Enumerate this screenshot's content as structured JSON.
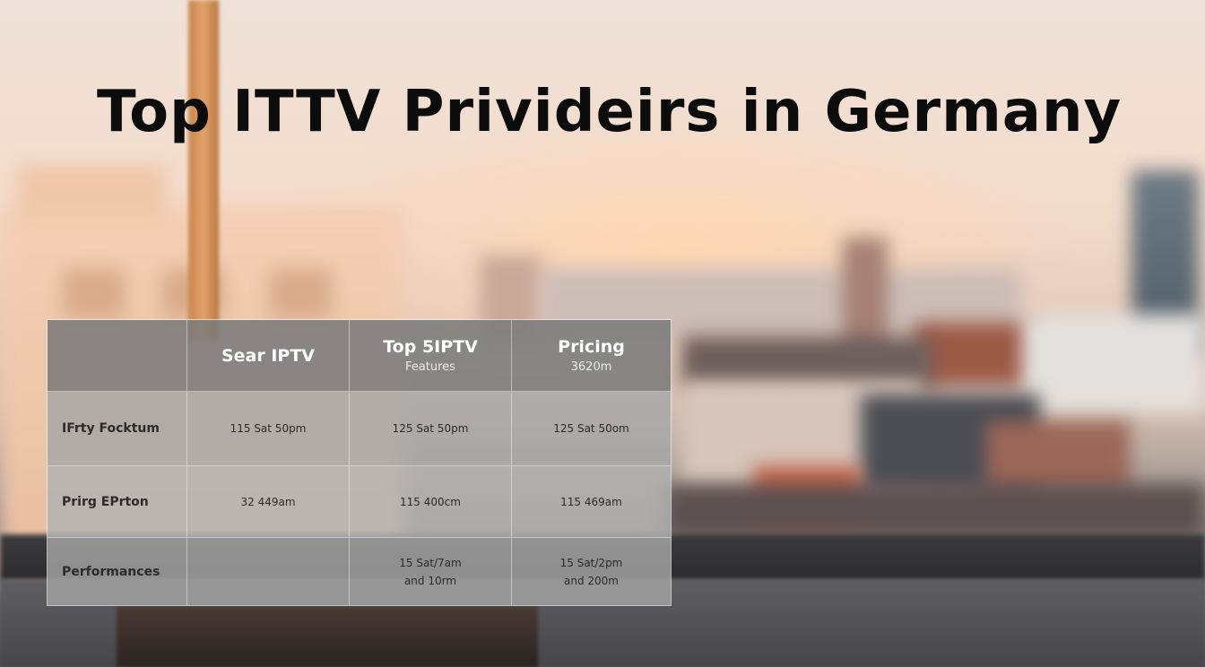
{
  "headline": "Top ITTV Privideirs in Germany",
  "table": {
    "header": {
      "col1": {
        "main": "Sear IPTV"
      },
      "col2": {
        "main": "Top 5IPTV",
        "sub": "Features"
      },
      "col3": {
        "main": "Pricing",
        "sub": "3620m"
      }
    },
    "rows": [
      {
        "label": "IFrty Focktum",
        "cells": [
          "115 Sat 50pm",
          "125 Sat 50pm",
          "125 Sat 50om"
        ]
      },
      {
        "label": "Prirg EPrton",
        "cells": [
          "32 449am",
          "115 400cm",
          "115 469am"
        ]
      },
      {
        "label": "Performances",
        "cells": [
          "",
          "15 Sat/7am",
          "15 Sat/2pm"
        ],
        "cells_line2": [
          "",
          "and 10rm",
          "and 200m"
        ]
      }
    ]
  }
}
